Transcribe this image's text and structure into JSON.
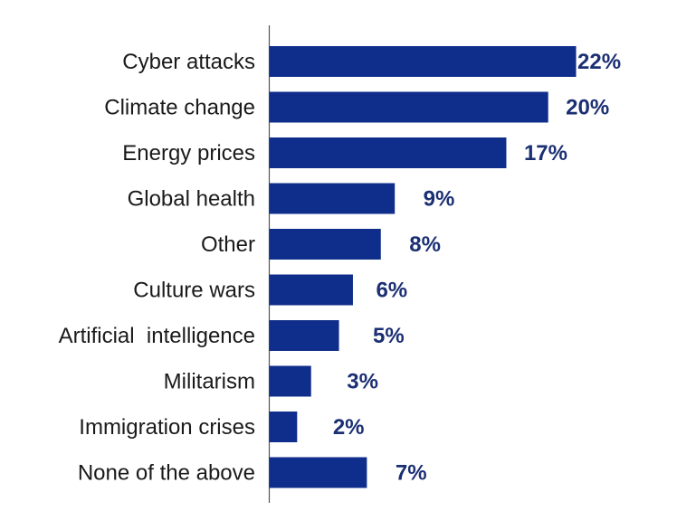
{
  "chart_data": {
    "type": "bar",
    "orientation": "horizontal",
    "title": "",
    "xlabel": "",
    "ylabel": "",
    "categories": [
      "Cyber attacks",
      "Climate change",
      "Energy prices",
      "Global health",
      "Other",
      "Culture wars",
      "Artificial  intelligence",
      "Militarism",
      "Immigration crises",
      "None of the above"
    ],
    "values": [
      22,
      20,
      17,
      9,
      8,
      6,
      5,
      3,
      2,
      7
    ],
    "value_labels": [
      "22%",
      "20%",
      "17%",
      "9%",
      "8%",
      "6%",
      "5%",
      "3%",
      "2%",
      "7%"
    ],
    "xlim": [
      0,
      22
    ],
    "grid": false,
    "legend": "none",
    "colors": {
      "bar": "#0f2d8a",
      "value_label": "#1b2f73",
      "category_label": "#1a1a1a",
      "axis": "#555555"
    }
  }
}
